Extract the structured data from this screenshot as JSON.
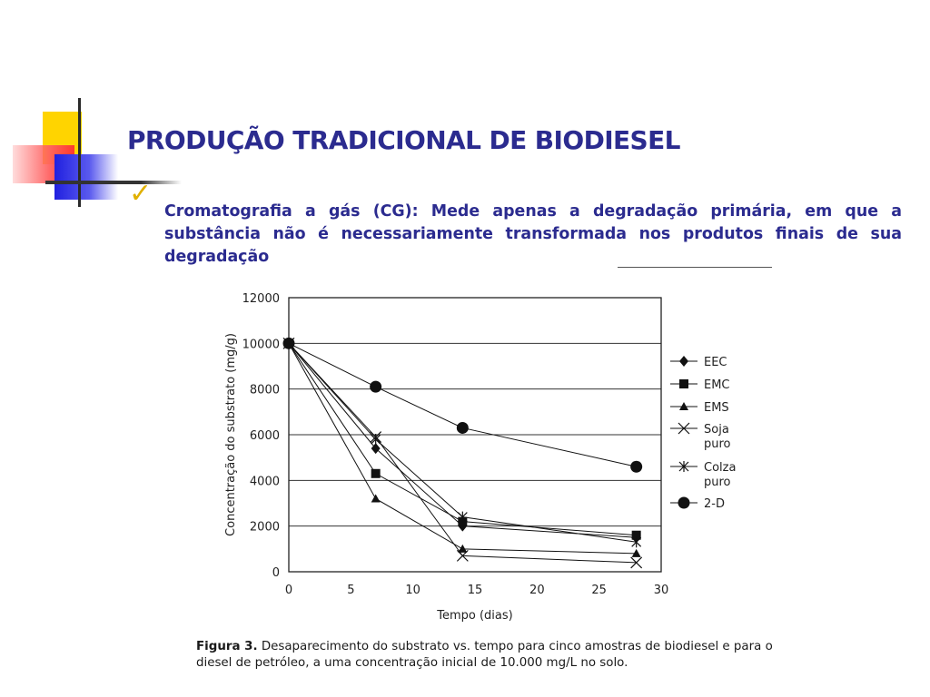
{
  "slide": {
    "title": "PRODUÇÃO TRADICIONAL DE BIODIESEL",
    "bullet_icon": "checkmark-icon",
    "bullet_text": "Cromatografia a gás (CG): Mede apenas a degradação primária, em que a substância não é necessariamente transformada nos produtos finais de sua degradação"
  },
  "caption": {
    "label": "Figura 3.",
    "text": "Desaparecimento do substrato vs. tempo para cinco amostras de biodiesel e para o diesel de petróleo, a uma concentração inicial de 10.000 mg/L no solo."
  },
  "colors": {
    "title": "#2b2b8f",
    "check": "#e0b000",
    "series": "#111111"
  },
  "chart_data": {
    "type": "line",
    "xlabel": "Tempo (dias)",
    "ylabel": "Concentração do substrato (mg/g)",
    "xlim": [
      0,
      30
    ],
    "ylim": [
      0,
      12000
    ],
    "xticks": [
      "0",
      "5",
      "10",
      "15",
      "20",
      "25",
      "30"
    ],
    "yticks": [
      "0",
      "2000",
      "4000",
      "6000",
      "8000",
      "10000",
      "12000"
    ],
    "grid": "horizontal",
    "legend_position": "right",
    "series": [
      {
        "name": "EEC",
        "marker": "diamond",
        "x": [
          0,
          7,
          14,
          28
        ],
        "y": [
          10000,
          5400,
          2000,
          1500
        ]
      },
      {
        "name": "EMC",
        "marker": "square",
        "x": [
          0,
          7,
          14,
          28
        ],
        "y": [
          10000,
          4300,
          2200,
          1600
        ]
      },
      {
        "name": "EMS",
        "marker": "triangle",
        "x": [
          0,
          7,
          14,
          28
        ],
        "y": [
          10000,
          3200,
          1000,
          800
        ]
      },
      {
        "name": "Soja puro",
        "marker": "x",
        "x": [
          0,
          7,
          14,
          28
        ],
        "y": [
          10000,
          5900,
          700,
          400
        ]
      },
      {
        "name": "Colza puro",
        "marker": "star",
        "x": [
          0,
          7,
          14,
          28
        ],
        "y": [
          10000,
          5800,
          2400,
          1300
        ]
      },
      {
        "name": "2-D",
        "marker": "circle",
        "x": [
          0,
          7,
          14,
          28
        ],
        "y": [
          10000,
          8100,
          6300,
          4600
        ]
      }
    ],
    "legend": [
      {
        "line1": "EEC",
        "line2": ""
      },
      {
        "line1": "EMC",
        "line2": ""
      },
      {
        "line1": "EMS",
        "line2": ""
      },
      {
        "line1": "Soja",
        "line2": "puro"
      },
      {
        "line1": "Colza",
        "line2": "puro"
      },
      {
        "line1": "2-D",
        "line2": ""
      }
    ]
  }
}
